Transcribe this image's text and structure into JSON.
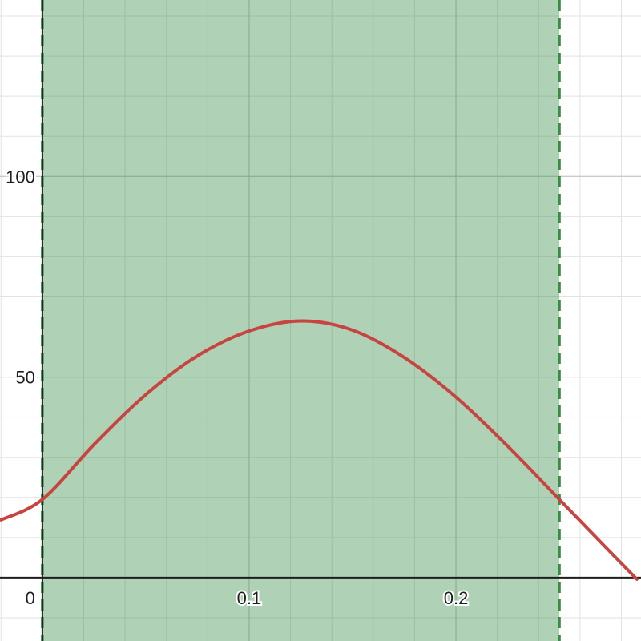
{
  "chart_data": {
    "type": "line",
    "title": "",
    "xlabel": "",
    "ylabel": "",
    "xlim": [
      -0.0205,
      0.2895
    ],
    "ylim": [
      -15.8,
      144
    ],
    "grid": true,
    "x_ticks": [
      {
        "value": 0,
        "label": "0"
      },
      {
        "value": 0.1,
        "label": "0.1"
      },
      {
        "value": 0.2,
        "label": "0.2"
      }
    ],
    "y_ticks": [
      {
        "value": 50,
        "label": "50"
      },
      {
        "value": 100,
        "label": "100"
      }
    ],
    "series": [
      {
        "kind": "curve",
        "color": "#c74440",
        "x": [
          -0.02,
          0,
          0.025,
          0.05,
          0.075,
          0.1,
          0.125,
          0.15,
          0.175,
          0.2,
          0.225,
          0.25,
          0.275,
          0.2875
        ],
        "y": [
          14.4,
          19.5,
          33.2,
          45.6,
          55.3,
          61.5,
          64.0,
          61.7,
          54.9,
          45.0,
          32.8,
          19.5,
          6.2,
          -0.4
        ]
      }
    ],
    "shaded_region": {
      "x_from": 0,
      "x_to": 0.25,
      "color": "#388c46",
      "boundary_style": "dashed"
    }
  }
}
